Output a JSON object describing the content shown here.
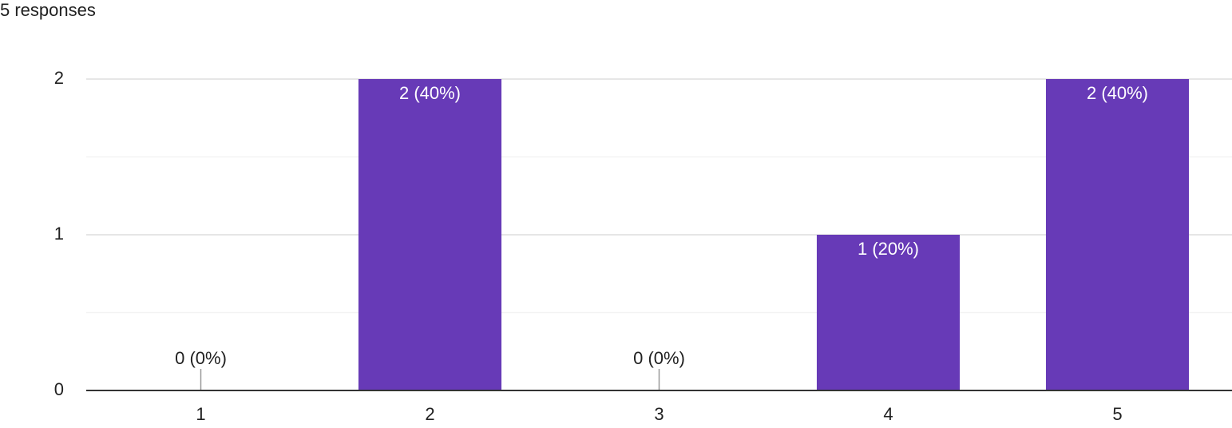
{
  "chart_data": {
    "type": "bar",
    "subtitle": "5 responses",
    "categories": [
      "1",
      "2",
      "3",
      "4",
      "5"
    ],
    "values": [
      0,
      2,
      0,
      1,
      2
    ],
    "value_labels": [
      "0 (0%)",
      "2 (40%)",
      "0 (0%)",
      "1 (20%)",
      "2 (40%)"
    ],
    "color": "#673ab7",
    "ylim": [
      0,
      2
    ],
    "yticks": [
      0,
      1,
      2
    ],
    "minor_yticks": [
      0.5,
      1.5
    ],
    "grid": true
  }
}
